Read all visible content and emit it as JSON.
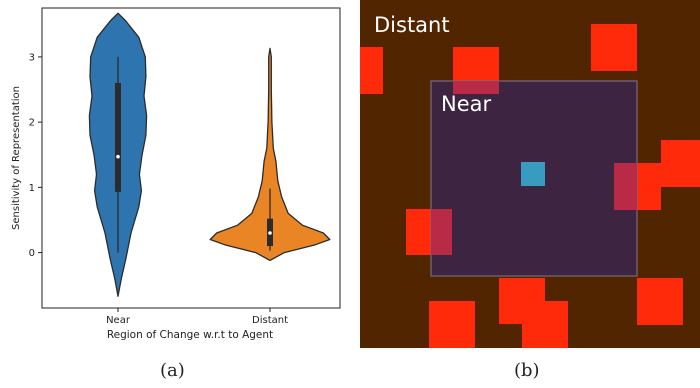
{
  "panel_a": {
    "caption": "(a)"
  },
  "panel_b": {
    "caption": "(b)",
    "region_outer_label": "Distant",
    "region_inner_label": "Near",
    "colors": {
      "background": "#512500",
      "near_region": "#3d2440",
      "near_border": "#7a6a7c",
      "change_cell": "#ff2a0a",
      "change_in_near": "#b82a45",
      "agent": "#3a9bc0"
    }
  },
  "chart_data": {
    "type": "violin",
    "title": "",
    "xlabel": "Region of Change w.r.t to Agent",
    "ylabel": "Sensitivity of Representation",
    "categories": [
      "Near",
      "Distant"
    ],
    "yticks": [
      0,
      1,
      2,
      3
    ],
    "ylim": [
      -0.85,
      3.75
    ],
    "grid": false,
    "series": [
      {
        "category": "Near",
        "color": "#2e75b0",
        "min": 0.0,
        "q1": 0.93,
        "median": 1.47,
        "q3": 2.6,
        "max": 3.0,
        "profile": [
          [
            -0.67,
            0.0
          ],
          [
            -0.4,
            0.05
          ],
          [
            -0.1,
            0.12
          ],
          [
            0.3,
            0.2
          ],
          [
            0.7,
            0.32
          ],
          [
            0.95,
            0.36
          ],
          [
            1.2,
            0.33
          ],
          [
            1.5,
            0.37
          ],
          [
            1.8,
            0.43
          ],
          [
            2.1,
            0.44
          ],
          [
            2.4,
            0.4
          ],
          [
            2.7,
            0.43
          ],
          [
            3.0,
            0.42
          ],
          [
            3.3,
            0.32
          ],
          [
            3.55,
            0.12
          ],
          [
            3.67,
            0.0
          ]
        ]
      },
      {
        "category": "Distant",
        "color": "#e98525",
        "min": 0.03,
        "q1": 0.1,
        "median": 0.3,
        "q3": 0.52,
        "max": 0.98,
        "profile": [
          [
            -0.12,
            0.0
          ],
          [
            0.0,
            0.22
          ],
          [
            0.12,
            0.7
          ],
          [
            0.2,
            0.92
          ],
          [
            0.3,
            0.82
          ],
          [
            0.42,
            0.5
          ],
          [
            0.6,
            0.28
          ],
          [
            0.85,
            0.18
          ],
          [
            1.1,
            0.12
          ],
          [
            1.4,
            0.09
          ],
          [
            1.6,
            0.05
          ],
          [
            2.0,
            0.03
          ],
          [
            2.5,
            0.02
          ],
          [
            3.0,
            0.02
          ],
          [
            3.13,
            0.0
          ]
        ]
      }
    ]
  }
}
